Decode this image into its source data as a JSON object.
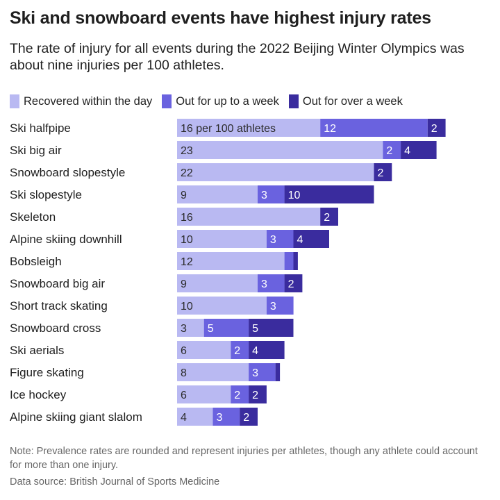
{
  "header": {
    "title": "Ski and snowboard events have highest injury rates",
    "subtitle": "The rate of injury for all events during the 2022 Beijing Winter Olympics was about nine injuries per 100 athletes."
  },
  "footer": {
    "note": "Note: Prevalence rates are rounded and represent injuries per athletes, though any athlete could account for more than one injury.",
    "source": "Data source: British Journal of Sports Medicine"
  },
  "colors": {
    "recovered": "#b9b9f2",
    "week": "#6a62df",
    "over_week": "#3a2c9e",
    "label_dark": "#2b2b2b",
    "label_light": "#ffffff"
  },
  "chart_data": {
    "type": "bar",
    "orientation": "horizontal",
    "stacked": true,
    "legend_position": "top",
    "xlim": [
      0,
      35
    ],
    "categories": [
      "Ski halfpipe",
      "Ski big air",
      "Snowboard slopestyle",
      "Ski slopestyle",
      "Skeleton",
      "Alpine skiing downhill",
      "Bobsleigh",
      "Snowboard big air",
      "Short track skating",
      "Snowboard cross",
      "Ski aerials",
      "Figure skating",
      "Ice hockey",
      "Alpine skiing giant slalom"
    ],
    "series": [
      {
        "name": "Recovered within the day",
        "values": [
          16,
          23,
          22,
          9,
          16,
          10,
          12,
          9,
          10,
          3,
          6,
          8,
          6,
          4
        ]
      },
      {
        "name": "Out for up to a week",
        "values": [
          12,
          2,
          0,
          3,
          0,
          3,
          1,
          3,
          3,
          5,
          2,
          3,
          2,
          3
        ]
      },
      {
        "name": "Out for over a week",
        "values": [
          2,
          4,
          2,
          10,
          2,
          4,
          0.5,
          2,
          0,
          5,
          4,
          0.5,
          2,
          2
        ]
      }
    ],
    "segment_labels": [
      [
        "16 per 100 athletes",
        "12",
        "2"
      ],
      [
        "23",
        "2",
        "4"
      ],
      [
        "22",
        "",
        "2"
      ],
      [
        "9",
        "3",
        "10"
      ],
      [
        "16",
        "",
        "2"
      ],
      [
        "10",
        "3",
        "4"
      ],
      [
        "12",
        "",
        ""
      ],
      [
        "9",
        "3",
        "2"
      ],
      [
        "10",
        "3",
        ""
      ],
      [
        "3",
        "5",
        "5"
      ],
      [
        "6",
        "2",
        "4"
      ],
      [
        "8",
        "3",
        ""
      ],
      [
        "6",
        "2",
        "2"
      ],
      [
        "4",
        "3",
        "2"
      ]
    ]
  }
}
